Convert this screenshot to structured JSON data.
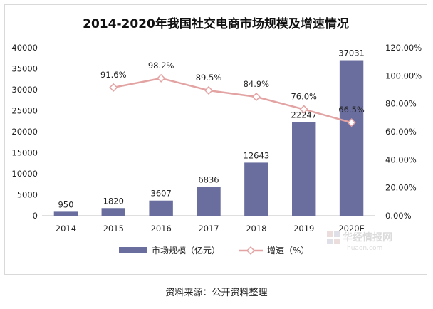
{
  "chart_data": {
    "type": "bar",
    "title": "2014-2020年我国社交电商市场规模及增速情况",
    "categories": [
      "2014",
      "2015",
      "2016",
      "2017",
      "2018",
      "2019",
      "2020E"
    ],
    "series": [
      {
        "name": "市场规模（亿元）",
        "type": "bar",
        "axis": "left",
        "color": "#6a6e9e",
        "values": [
          950,
          1820,
          3607,
          6836,
          12643,
          22247,
          37031
        ],
        "labels": [
          "950",
          "1820",
          "3607",
          "6836",
          "12643",
          "22247",
          "37031"
        ]
      },
      {
        "name": "增速（%）",
        "type": "line",
        "axis": "right",
        "color": "#e3a3a3",
        "values": [
          null,
          91.6,
          98.2,
          89.5,
          84.9,
          76.0,
          66.5
        ],
        "labels": [
          "",
          "91.6%",
          "98.2%",
          "89.5%",
          "84.9%",
          "76.0%",
          "66.5%"
        ]
      }
    ],
    "y_left": {
      "ylim": [
        0,
        40000
      ],
      "ticks": [
        "0",
        "5000",
        "10000",
        "15000",
        "20000",
        "25000",
        "30000",
        "35000",
        "40000"
      ]
    },
    "y_right": {
      "ylim": [
        0,
        120
      ],
      "ticks": [
        "0.00%",
        "20.00%",
        "40.00%",
        "60.00%",
        "80.00%",
        "100.00%",
        "120.00%"
      ]
    },
    "legend_position": "bottom",
    "grid": false
  },
  "watermark": {
    "main": "华经情报网",
    "sub": "huaon.com"
  },
  "source": "资料来源：公开资料整理"
}
